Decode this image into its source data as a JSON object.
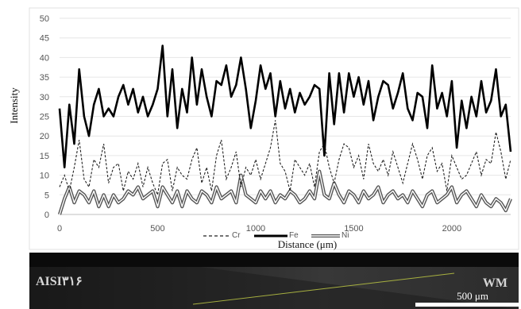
{
  "chart_data": {
    "type": "line",
    "xlabel": "Distance (μm)",
    "ylabel": "Intensity",
    "xlim": [
      0,
      2300
    ],
    "ylim": [
      0,
      50
    ],
    "x_ticks": [
      0,
      500,
      1000,
      1500,
      2000
    ],
    "y_ticks": [
      0,
      5,
      10,
      15,
      20,
      25,
      30,
      35,
      40,
      45,
      50
    ],
    "grid": "horizontal",
    "legend_position": "bottom",
    "series": [
      {
        "name": "Cr",
        "style": "dashed",
        "color": "#222222",
        "x": [
          0,
          25,
          50,
          75,
          100,
          125,
          150,
          175,
          200,
          225,
          250,
          275,
          300,
          325,
          350,
          375,
          400,
          425,
          450,
          475,
          500,
          525,
          550,
          575,
          600,
          625,
          650,
          675,
          700,
          725,
          750,
          775,
          800,
          825,
          850,
          875,
          900,
          925,
          950,
          975,
          1000,
          1025,
          1050,
          1075,
          1100,
          1125,
          1150,
          1175,
          1200,
          1225,
          1250,
          1275,
          1300,
          1325,
          1350,
          1375,
          1400,
          1425,
          1450,
          1475,
          1500,
          1525,
          1550,
          1575,
          1600,
          1625,
          1650,
          1675,
          1700,
          1725,
          1750,
          1775,
          1800,
          1825,
          1850,
          1875,
          1900,
          1925,
          1950,
          1975,
          2000,
          2025,
          2050,
          2075,
          2100,
          2125,
          2150,
          2175,
          2200,
          2225,
          2250,
          2275,
          2300
        ],
        "values": [
          7,
          10,
          6,
          12,
          19,
          9,
          7,
          14,
          12,
          18,
          8,
          12,
          13,
          6,
          11,
          9,
          13,
          7,
          12,
          8,
          5,
          13,
          14,
          6,
          12,
          10,
          9,
          14,
          17,
          8,
          12,
          6,
          15,
          19,
          9,
          12,
          16,
          7,
          12,
          10,
          14,
          9,
          13,
          17,
          24,
          13,
          11,
          6,
          14,
          12,
          10,
          13,
          7,
          16,
          18,
          12,
          8,
          14,
          18,
          17,
          12,
          15,
          9,
          18,
          13,
          11,
          14,
          10,
          16,
          12,
          8,
          13,
          18,
          14,
          9,
          15,
          17,
          11,
          13,
          6,
          15,
          12,
          9,
          10,
          13,
          16,
          10,
          14,
          13,
          21,
          16,
          9,
          14
        ]
      },
      {
        "name": "Fe",
        "style": "solid-thick",
        "color": "#000000",
        "x": [
          0,
          25,
          50,
          75,
          100,
          125,
          150,
          175,
          200,
          225,
          250,
          275,
          300,
          325,
          350,
          375,
          400,
          425,
          450,
          475,
          500,
          525,
          550,
          575,
          600,
          625,
          650,
          675,
          700,
          725,
          750,
          775,
          800,
          825,
          850,
          875,
          900,
          925,
          950,
          975,
          1000,
          1025,
          1050,
          1075,
          1100,
          1125,
          1150,
          1175,
          1200,
          1225,
          1250,
          1275,
          1300,
          1325,
          1350,
          1375,
          1400,
          1425,
          1450,
          1475,
          1500,
          1525,
          1550,
          1575,
          1600,
          1625,
          1650,
          1675,
          1700,
          1725,
          1750,
          1775,
          1800,
          1825,
          1850,
          1875,
          1900,
          1925,
          1950,
          1975,
          2000,
          2025,
          2050,
          2075,
          2100,
          2125,
          2150,
          2175,
          2200,
          2225,
          2250,
          2275,
          2300
        ],
        "values": [
          27,
          12,
          28,
          18,
          37,
          25,
          20,
          28,
          32,
          25,
          27,
          25,
          30,
          33,
          28,
          32,
          26,
          30,
          25,
          28,
          32,
          43,
          25,
          37,
          22,
          32,
          26,
          40,
          28,
          37,
          30,
          25,
          34,
          33,
          38,
          30,
          33,
          40,
          32,
          22,
          29,
          38,
          32,
          36,
          25,
          34,
          27,
          32,
          26,
          31,
          28,
          30,
          33,
          32,
          15,
          36,
          23,
          36,
          26,
          36,
          30,
          35,
          28,
          34,
          24,
          30,
          34,
          33,
          27,
          31,
          36,
          27,
          24,
          31,
          30,
          22,
          38,
          27,
          31,
          25,
          34,
          17,
          29,
          22,
          30,
          25,
          34,
          26,
          29,
          37,
          25,
          28,
          16
        ]
      },
      {
        "name": "Ni",
        "style": "double",
        "color": "#666666",
        "x": [
          0,
          25,
          50,
          75,
          100,
          125,
          150,
          175,
          200,
          225,
          250,
          275,
          300,
          325,
          350,
          375,
          400,
          425,
          450,
          475,
          500,
          525,
          550,
          575,
          600,
          625,
          650,
          675,
          700,
          725,
          750,
          775,
          800,
          825,
          850,
          875,
          900,
          925,
          950,
          975,
          1000,
          1025,
          1050,
          1075,
          1100,
          1125,
          1150,
          1175,
          1200,
          1225,
          1250,
          1275,
          1300,
          1325,
          1350,
          1375,
          1400,
          1425,
          1450,
          1475,
          1500,
          1525,
          1550,
          1575,
          1600,
          1625,
          1650,
          1675,
          1700,
          1725,
          1750,
          1775,
          1800,
          1825,
          1850,
          1875,
          1900,
          1925,
          1950,
          1975,
          2000,
          2025,
          2050,
          2075,
          2100,
          2125,
          2150,
          2175,
          2200,
          2225,
          2250,
          2275,
          2300
        ],
        "values": [
          0,
          4,
          7,
          3,
          6,
          5,
          3,
          6,
          2,
          5,
          2,
          5,
          3,
          4,
          6,
          5,
          7,
          4,
          5,
          6,
          2,
          7,
          5,
          3,
          6,
          2,
          6,
          4,
          3,
          6,
          5,
          3,
          7,
          4,
          5,
          6,
          3,
          10,
          5,
          4,
          3,
          6,
          4,
          6,
          3,
          5,
          4,
          6,
          5,
          3,
          4,
          6,
          4,
          11,
          5,
          4,
          8,
          5,
          3,
          6,
          5,
          3,
          6,
          4,
          5,
          7,
          3,
          5,
          6,
          4,
          5,
          3,
          6,
          4,
          2,
          5,
          6,
          3,
          4,
          5,
          7,
          3,
          5,
          6,
          4,
          2,
          5,
          3,
          2,
          4,
          3,
          1,
          4
        ]
      }
    ]
  },
  "micrograph": {
    "left_label": "AISI٣١۶",
    "right_label": "WM",
    "scale_label": "500 μm"
  }
}
